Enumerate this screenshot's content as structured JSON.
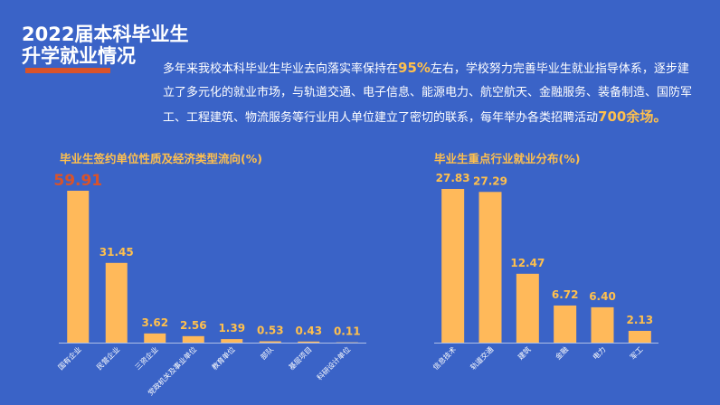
{
  "header": {
    "title_line1": "2022届本科毕业生",
    "title_line2": "升学就业情况"
  },
  "intro": {
    "part1": "多年来我校本科毕业生毕业去向落实率保持在",
    "highlight1": "95%",
    "part2": "左右，学校努力完善毕业生就业指导体系，逐步建立了多元化的就业市场，与轨道交通、电子信息、能源电力、航空航天、金融服务、装备制造、国防军工、工程建筑、物流服务等行业用人单位建立了密切的联系，每年举办各类招聘活动",
    "highlight2": "700余场。"
  },
  "colors": {
    "background": "#3a63c7",
    "bar": "#ffb95a",
    "accent": "#ffc04d",
    "highlight_value": "#d9532a"
  },
  "chart_data": [
    {
      "type": "bar",
      "title": "毕业生签约单位性质及经济类型流向(%)",
      "categories": [
        "国有企业",
        "民营企业",
        "三资企业",
        "党政机关及事业单位",
        "教育单位",
        "部队",
        "基层项目",
        "科研设计单位"
      ],
      "values": [
        59.91,
        31.45,
        3.62,
        2.56,
        1.39,
        0.53,
        0.43,
        0.11
      ],
      "labels": [
        "59.91",
        "31.45",
        "3.62",
        "2.56",
        "1.39",
        "0.53",
        "0.43",
        "0.11"
      ],
      "highlight_index": 0,
      "ylim": [
        0,
        59.91
      ]
    },
    {
      "type": "bar",
      "title": "毕业生重点行业就业分布(%)",
      "categories": [
        "信息技术",
        "轨道交通",
        "建筑",
        "金融",
        "电力",
        "军工"
      ],
      "values": [
        27.83,
        27.29,
        12.47,
        6.72,
        6.4,
        2.13
      ],
      "labels": [
        "27.83",
        "27.29",
        "12.47",
        "6.72",
        "6.40",
        "2.13"
      ],
      "ylim": [
        0,
        27.83
      ]
    }
  ]
}
